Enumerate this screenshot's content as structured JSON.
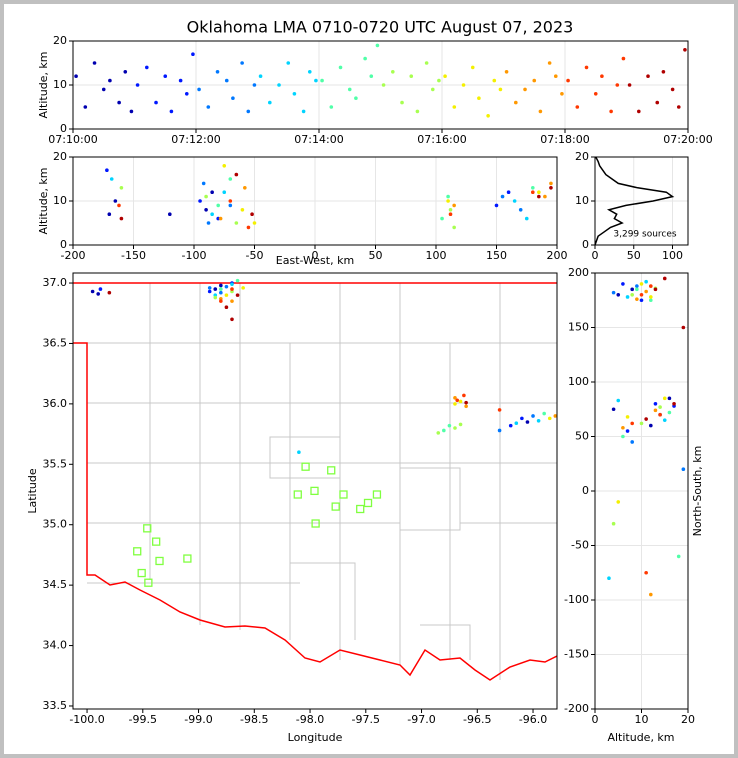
{
  "chart_data": [
    {
      "type": "scatter",
      "title": "Oklahoma LMA 0710-0720 UTC August 07, 2023",
      "ylabel": "Altitude, km",
      "xlim": [
        0,
        10
      ],
      "xticks": [
        {
          "value": 0,
          "label": "07:10:00"
        },
        {
          "value": 2,
          "label": "07:12:00"
        },
        {
          "value": 4,
          "label": "07:14:00"
        },
        {
          "value": 6,
          "label": "07:16:00"
        },
        {
          "value": 8,
          "label": "07:18:00"
        },
        {
          "value": 10,
          "label": "07:20:00"
        }
      ],
      "ylim": [
        0,
        20
      ],
      "yticks": [
        0,
        10,
        20
      ],
      "grid": true,
      "series": [
        {
          "color": "#0000b0",
          "x": [
            0.05,
            0.2,
            0.35,
            0.5,
            0.6,
            0.75,
            0.85,
            0.95
          ],
          "y": [
            12,
            5,
            15,
            9,
            11,
            6,
            13,
            4
          ]
        },
        {
          "color": "#0018ff",
          "x": [
            1.05,
            1.2,
            1.35,
            1.5,
            1.6,
            1.75,
            1.85,
            1.95
          ],
          "y": [
            10,
            14,
            6,
            12,
            4,
            11,
            8,
            17
          ]
        },
        {
          "color": "#0078ff",
          "x": [
            2.05,
            2.2,
            2.35,
            2.5,
            2.6,
            2.75,
            2.85,
            2.95
          ],
          "y": [
            9,
            5,
            13,
            11,
            7,
            15,
            4,
            10
          ]
        },
        {
          "color": "#00d4ff",
          "x": [
            3.05,
            3.2,
            3.35,
            3.5,
            3.6,
            3.75,
            3.85,
            3.95
          ],
          "y": [
            12,
            6,
            10,
            15,
            8,
            4,
            13,
            11
          ]
        },
        {
          "color": "#50ffa8",
          "x": [
            4.05,
            4.2,
            4.35,
            4.5,
            4.6,
            4.75,
            4.85,
            4.95
          ],
          "y": [
            11,
            5,
            14,
            9,
            7,
            16,
            12,
            19
          ]
        },
        {
          "color": "#a8ff50",
          "x": [
            5.05,
            5.2,
            5.35,
            5.5,
            5.6,
            5.75,
            5.85,
            5.95
          ],
          "y": [
            10,
            13,
            6,
            12,
            4,
            15,
            9,
            11
          ]
        },
        {
          "color": "#f4f000",
          "x": [
            6.05,
            6.2,
            6.35,
            6.5,
            6.6,
            6.75,
            6.85,
            6.95
          ],
          "y": [
            12,
            5,
            10,
            14,
            7,
            3,
            11,
            9
          ]
        },
        {
          "color": "#ff9800",
          "x": [
            7.05,
            7.2,
            7.35,
            7.5,
            7.6,
            7.75,
            7.85,
            7.95
          ],
          "y": [
            13,
            6,
            9,
            11,
            4,
            15,
            12,
            8
          ]
        },
        {
          "color": "#ff3800",
          "x": [
            8.05,
            8.2,
            8.35,
            8.5,
            8.6,
            8.75,
            8.85,
            8.95
          ],
          "y": [
            11,
            5,
            14,
            8,
            12,
            4,
            10,
            16
          ]
        },
        {
          "color": "#b00000",
          "x": [
            9.05,
            9.2,
            9.35,
            9.5,
            9.6,
            9.75,
            9.85,
            9.95
          ],
          "y": [
            10,
            4,
            12,
            6,
            13,
            9,
            5,
            18
          ]
        }
      ]
    },
    {
      "type": "scatter",
      "xlabel": "East-West, km",
      "ylabel": "Altitude, km",
      "xlim": [
        -200,
        200
      ],
      "xticks": [
        -200,
        -150,
        -100,
        -50,
        0,
        50,
        100,
        150,
        200
      ],
      "ylim": [
        0,
        20
      ],
      "yticks": [
        0,
        10,
        20
      ],
      "grid": true,
      "series": [
        {
          "color": "#0000b0",
          "x": [
            -90,
            -85,
            -170,
            -165,
            -120
          ],
          "y": [
            8,
            12,
            7,
            10,
            7
          ]
        },
        {
          "color": "#0018ff",
          "x": [
            -95,
            -80,
            -172,
            150,
            160
          ],
          "y": [
            10,
            6,
            17,
            9,
            12
          ]
        },
        {
          "color": "#0078ff",
          "x": [
            -92,
            -88,
            -70,
            155,
            170
          ],
          "y": [
            14,
            5,
            9,
            11,
            8
          ]
        },
        {
          "color": "#00d4ff",
          "x": [
            -85,
            -75,
            -168,
            165,
            175
          ],
          "y": [
            7,
            12,
            15,
            10,
            6
          ]
        },
        {
          "color": "#50ffa8",
          "x": [
            -80,
            -70,
            105,
            110,
            180
          ],
          "y": [
            9,
            15,
            6,
            11,
            13
          ]
        },
        {
          "color": "#a8ff50",
          "x": [
            -90,
            -65,
            112,
            115,
            -160
          ],
          "y": [
            11,
            5,
            8,
            4,
            13
          ]
        },
        {
          "color": "#f4f000",
          "x": [
            -75,
            -60,
            110,
            185,
            -50
          ],
          "y": [
            18,
            8,
            10,
            12,
            5
          ]
        },
        {
          "color": "#ff9800",
          "x": [
            -78,
            -58,
            115,
            190,
            195
          ],
          "y": [
            6,
            13,
            9,
            11,
            14
          ]
        },
        {
          "color": "#ff3800",
          "x": [
            -70,
            -55,
            112,
            180,
            -162
          ],
          "y": [
            10,
            4,
            7,
            12,
            9
          ]
        },
        {
          "color": "#b00000",
          "x": [
            -65,
            -52,
            185,
            195,
            -160
          ],
          "y": [
            16,
            7,
            11,
            13,
            6
          ]
        }
      ]
    },
    {
      "type": "line",
      "annotation": "3,299 sources",
      "color": "#000000",
      "xlim": [
        0,
        120
      ],
      "xticks": [
        0,
        50,
        100
      ],
      "ylim": [
        0,
        20
      ],
      "yticks": [
        0,
        10,
        20
      ],
      "grid": true,
      "x": [
        0,
        2,
        4,
        12,
        20,
        35,
        25,
        28,
        18,
        40,
        75,
        100,
        92,
        55,
        30,
        22,
        14,
        10,
        6,
        4,
        1
      ],
      "y": [
        0,
        1,
        2,
        3,
        4,
        5,
        6,
        7,
        8,
        9,
        10,
        11,
        12,
        13,
        14,
        15,
        16,
        17,
        18,
        19,
        20
      ]
    },
    {
      "type": "scatter",
      "xlabel": "Longitude",
      "ylabel": "Latitude",
      "xlim": [
        -100.126,
        -95.785
      ],
      "xticks": [
        {
          "value": -100,
          "label": "-100.0"
        },
        -99.5,
        {
          "value": -99,
          "label": "-99.0"
        },
        -98.5,
        {
          "value": -98,
          "label": "-98.0"
        },
        -97.5,
        {
          "value": -97,
          "label": "-97.0"
        },
        -96.5,
        {
          "value": -96,
          "label": "-96.0"
        }
      ],
      "ylim": [
        33.475,
        37.083
      ],
      "yticks": [
        33.5,
        {
          "value": 34,
          "label": "34.0"
        },
        34.5,
        {
          "value": 35,
          "label": "35.0"
        },
        35.5,
        {
          "value": 36,
          "label": "36.0"
        },
        36.5,
        {
          "value": 37,
          "label": "37.0"
        }
      ],
      "grid": false,
      "series": [
        {
          "color": "#0000b0",
          "x": [
            -99.95,
            -99.9,
            -98.85,
            -98.8,
            -96.05
          ],
          "y": [
            36.93,
            36.91,
            36.95,
            36.98,
            35.85
          ]
        },
        {
          "color": "#0018ff",
          "x": [
            -99.88,
            -98.9,
            -96.1,
            -96.2,
            -98.7
          ],
          "y": [
            36.95,
            36.93,
            35.88,
            35.82,
            37.0
          ]
        },
        {
          "color": "#0078ff",
          "x": [
            -98.8,
            -98.75,
            -96.0,
            -96.3,
            -98.9
          ],
          "y": [
            36.92,
            36.97,
            35.9,
            35.78,
            36.96
          ]
        },
        {
          "color": "#00d4ff",
          "x": [
            -98.85,
            -98.7,
            -95.95,
            -96.15,
            -98.1
          ],
          "y": [
            36.9,
            36.99,
            35.86,
            35.84,
            35.6
          ]
        },
        {
          "color": "#50ffa8",
          "x": [
            -98.8,
            -96.75,
            -96.8,
            -95.9,
            -98.65
          ],
          "y": [
            36.95,
            35.82,
            35.78,
            35.92,
            37.02
          ]
        },
        {
          "color": "#a8ff50",
          "x": [
            -98.7,
            -96.7,
            -96.65,
            -96.85,
            -98.85
          ],
          "y": [
            36.93,
            35.8,
            35.83,
            35.76,
            36.88
          ]
        },
        {
          "color": "#f4f000",
          "x": [
            -98.75,
            -96.65,
            -96.7,
            -95.85,
            -98.6
          ],
          "y": [
            36.9,
            36.02,
            36.0,
            35.88,
            36.96
          ]
        },
        {
          "color": "#ff9800",
          "x": [
            -98.8,
            -96.7,
            -96.6,
            -95.8,
            -98.7
          ],
          "y": [
            36.87,
            36.05,
            35.98,
            35.9,
            36.85
          ]
        },
        {
          "color": "#ff3800",
          "x": [
            -98.7,
            -96.68,
            -96.62,
            -98.8,
            -96.3
          ],
          "y": [
            36.95,
            36.03,
            36.07,
            36.85,
            35.95
          ]
        },
        {
          "color": "#b00000",
          "x": [
            -98.65,
            -96.6,
            -98.75,
            -98.7,
            -99.8
          ],
          "y": [
            36.9,
            36.01,
            36.8,
            36.7,
            36.92
          ]
        },
        {
          "color": "#80ff40",
          "marker": "square",
          "x": [
            -99.55,
            -99.46,
            -99.38,
            -99.35,
            -99.51,
            -99.45,
            -99.1,
            -98.11,
            -98.04,
            -97.96,
            -97.81,
            -97.95,
            -97.77,
            -97.7,
            -97.55,
            -97.48,
            -97.4
          ],
          "y": [
            34.78,
            34.97,
            34.86,
            34.7,
            34.6,
            34.52,
            34.72,
            35.25,
            35.48,
            35.28,
            35.45,
            35.01,
            35.15,
            35.25,
            35.13,
            35.18,
            35.25
          ]
        }
      ]
    },
    {
      "type": "scatter",
      "xlabel": "Altitude, km",
      "ylabel": "North-South, km",
      "xlim": [
        0,
        20
      ],
      "xticks": [
        0,
        10,
        20
      ],
      "ylim": [
        -200,
        200
      ],
      "yticks": [
        -200,
        -150,
        -100,
        -50,
        0,
        50,
        100,
        150,
        200
      ],
      "grid": true,
      "series": [
        {
          "color": "#0000b0",
          "x": [
            5,
            8,
            4,
            12,
            16
          ],
          "y": [
            180,
            185,
            75,
            60,
            85
          ]
        },
        {
          "color": "#0018ff",
          "x": [
            6,
            10,
            13,
            7,
            17
          ],
          "y": [
            190,
            175,
            80,
            55,
            78
          ]
        },
        {
          "color": "#0078ff",
          "x": [
            4,
            9,
            14,
            8,
            19
          ],
          "y": [
            182,
            188,
            70,
            45,
            20
          ]
        },
        {
          "color": "#00d4ff",
          "x": [
            7,
            11,
            5,
            15,
            3
          ],
          "y": [
            178,
            192,
            83,
            65,
            -80
          ]
        },
        {
          "color": "#50ffa8",
          "x": [
            9,
            12,
            16,
            6,
            18
          ],
          "y": [
            185,
            175,
            72,
            50,
            -60
          ]
        },
        {
          "color": "#a8ff50",
          "x": [
            8,
            13,
            10,
            14,
            4
          ],
          "y": [
            180,
            186,
            62,
            77,
            -30
          ]
        },
        {
          "color": "#f4f000",
          "x": [
            10,
            12,
            7,
            15,
            5
          ],
          "y": [
            190,
            178,
            68,
            85,
            -10
          ]
        },
        {
          "color": "#ff9800",
          "x": [
            11,
            9,
            13,
            6,
            12
          ],
          "y": [
            183,
            176,
            74,
            58,
            -95
          ]
        },
        {
          "color": "#ff3800",
          "x": [
            12,
            10,
            14,
            8,
            11
          ],
          "y": [
            188,
            180,
            70,
            62,
            -75
          ]
        },
        {
          "color": "#b00000",
          "x": [
            13,
            15,
            11,
            17,
            19
          ],
          "y": [
            185,
            195,
            66,
            80,
            150
          ]
        }
      ]
    }
  ]
}
